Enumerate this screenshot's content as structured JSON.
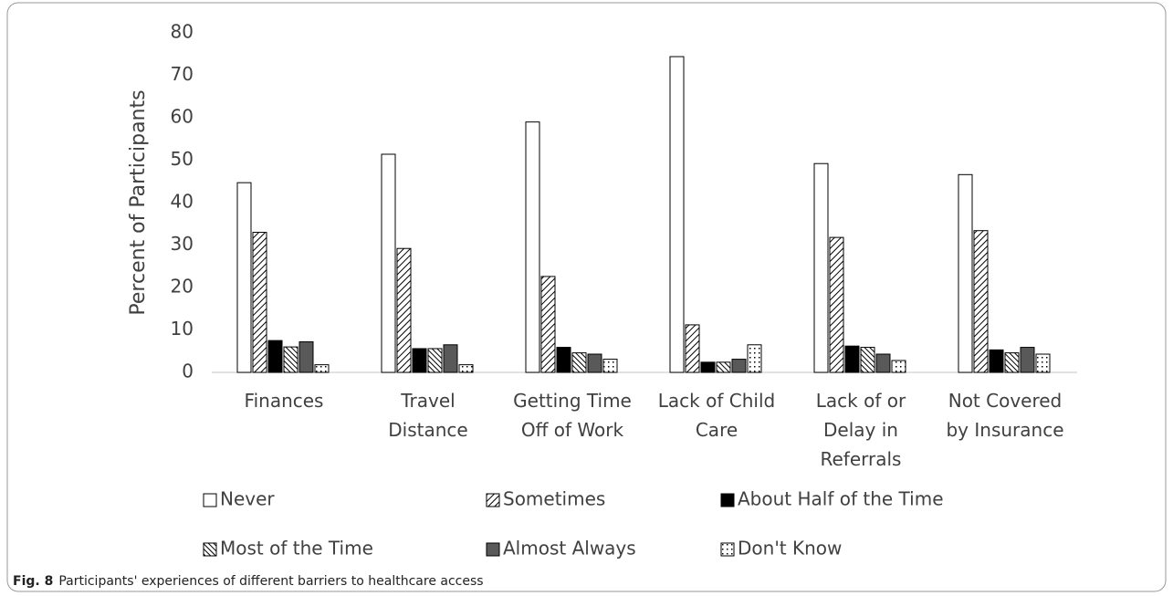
{
  "chart_data": {
    "type": "bar",
    "ylabel": "Percent of Participants",
    "categories": [
      "Finances",
      "Travel Distance",
      "Getting Time Off of Work",
      "Lack of Child Care",
      "Lack of or Delay in Referrals",
      "Not Covered by Insurance"
    ],
    "series": [
      {
        "name": "Never",
        "color": "#ffffff",
        "pattern": "none",
        "values": [
          44.7,
          51.4,
          59,
          74.4,
          49.2,
          46.6
        ]
      },
      {
        "name": "Sometimes",
        "color": "#ffffff",
        "pattern": "diagonal",
        "values": [
          33,
          29.2,
          22.6,
          11.2,
          31.8,
          33.4
        ]
      },
      {
        "name": "About Half of the Time",
        "color": "#000000",
        "pattern": "none",
        "values": [
          7.5,
          5.6,
          5.9,
          2.4,
          6.2,
          5.3
        ]
      },
      {
        "name": "Most of the Time",
        "color": "#ffffff",
        "pattern": "backslash",
        "values": [
          6,
          5.6,
          4.6,
          2.4,
          5.9,
          4.6
        ]
      },
      {
        "name": "Almost Always",
        "color": "#595959",
        "pattern": "none",
        "values": [
          7.2,
          6.5,
          4.3,
          3.1,
          4.3,
          5.9
        ]
      },
      {
        "name": "Don't Know",
        "color": "#ffffff",
        "pattern": "dots",
        "values": [
          1.8,
          1.8,
          3.1,
          6.5,
          2.8,
          4.3
        ]
      }
    ],
    "ylim": [
      0,
      80
    ],
    "yticks": [
      0,
      10,
      20,
      30,
      40,
      50,
      60,
      70,
      80
    ],
    "grid": false,
    "legend": "bottom"
  },
  "caption": {
    "label": "Fig. 8",
    "text": "Participants' experiences of different barriers to healthcare access"
  }
}
